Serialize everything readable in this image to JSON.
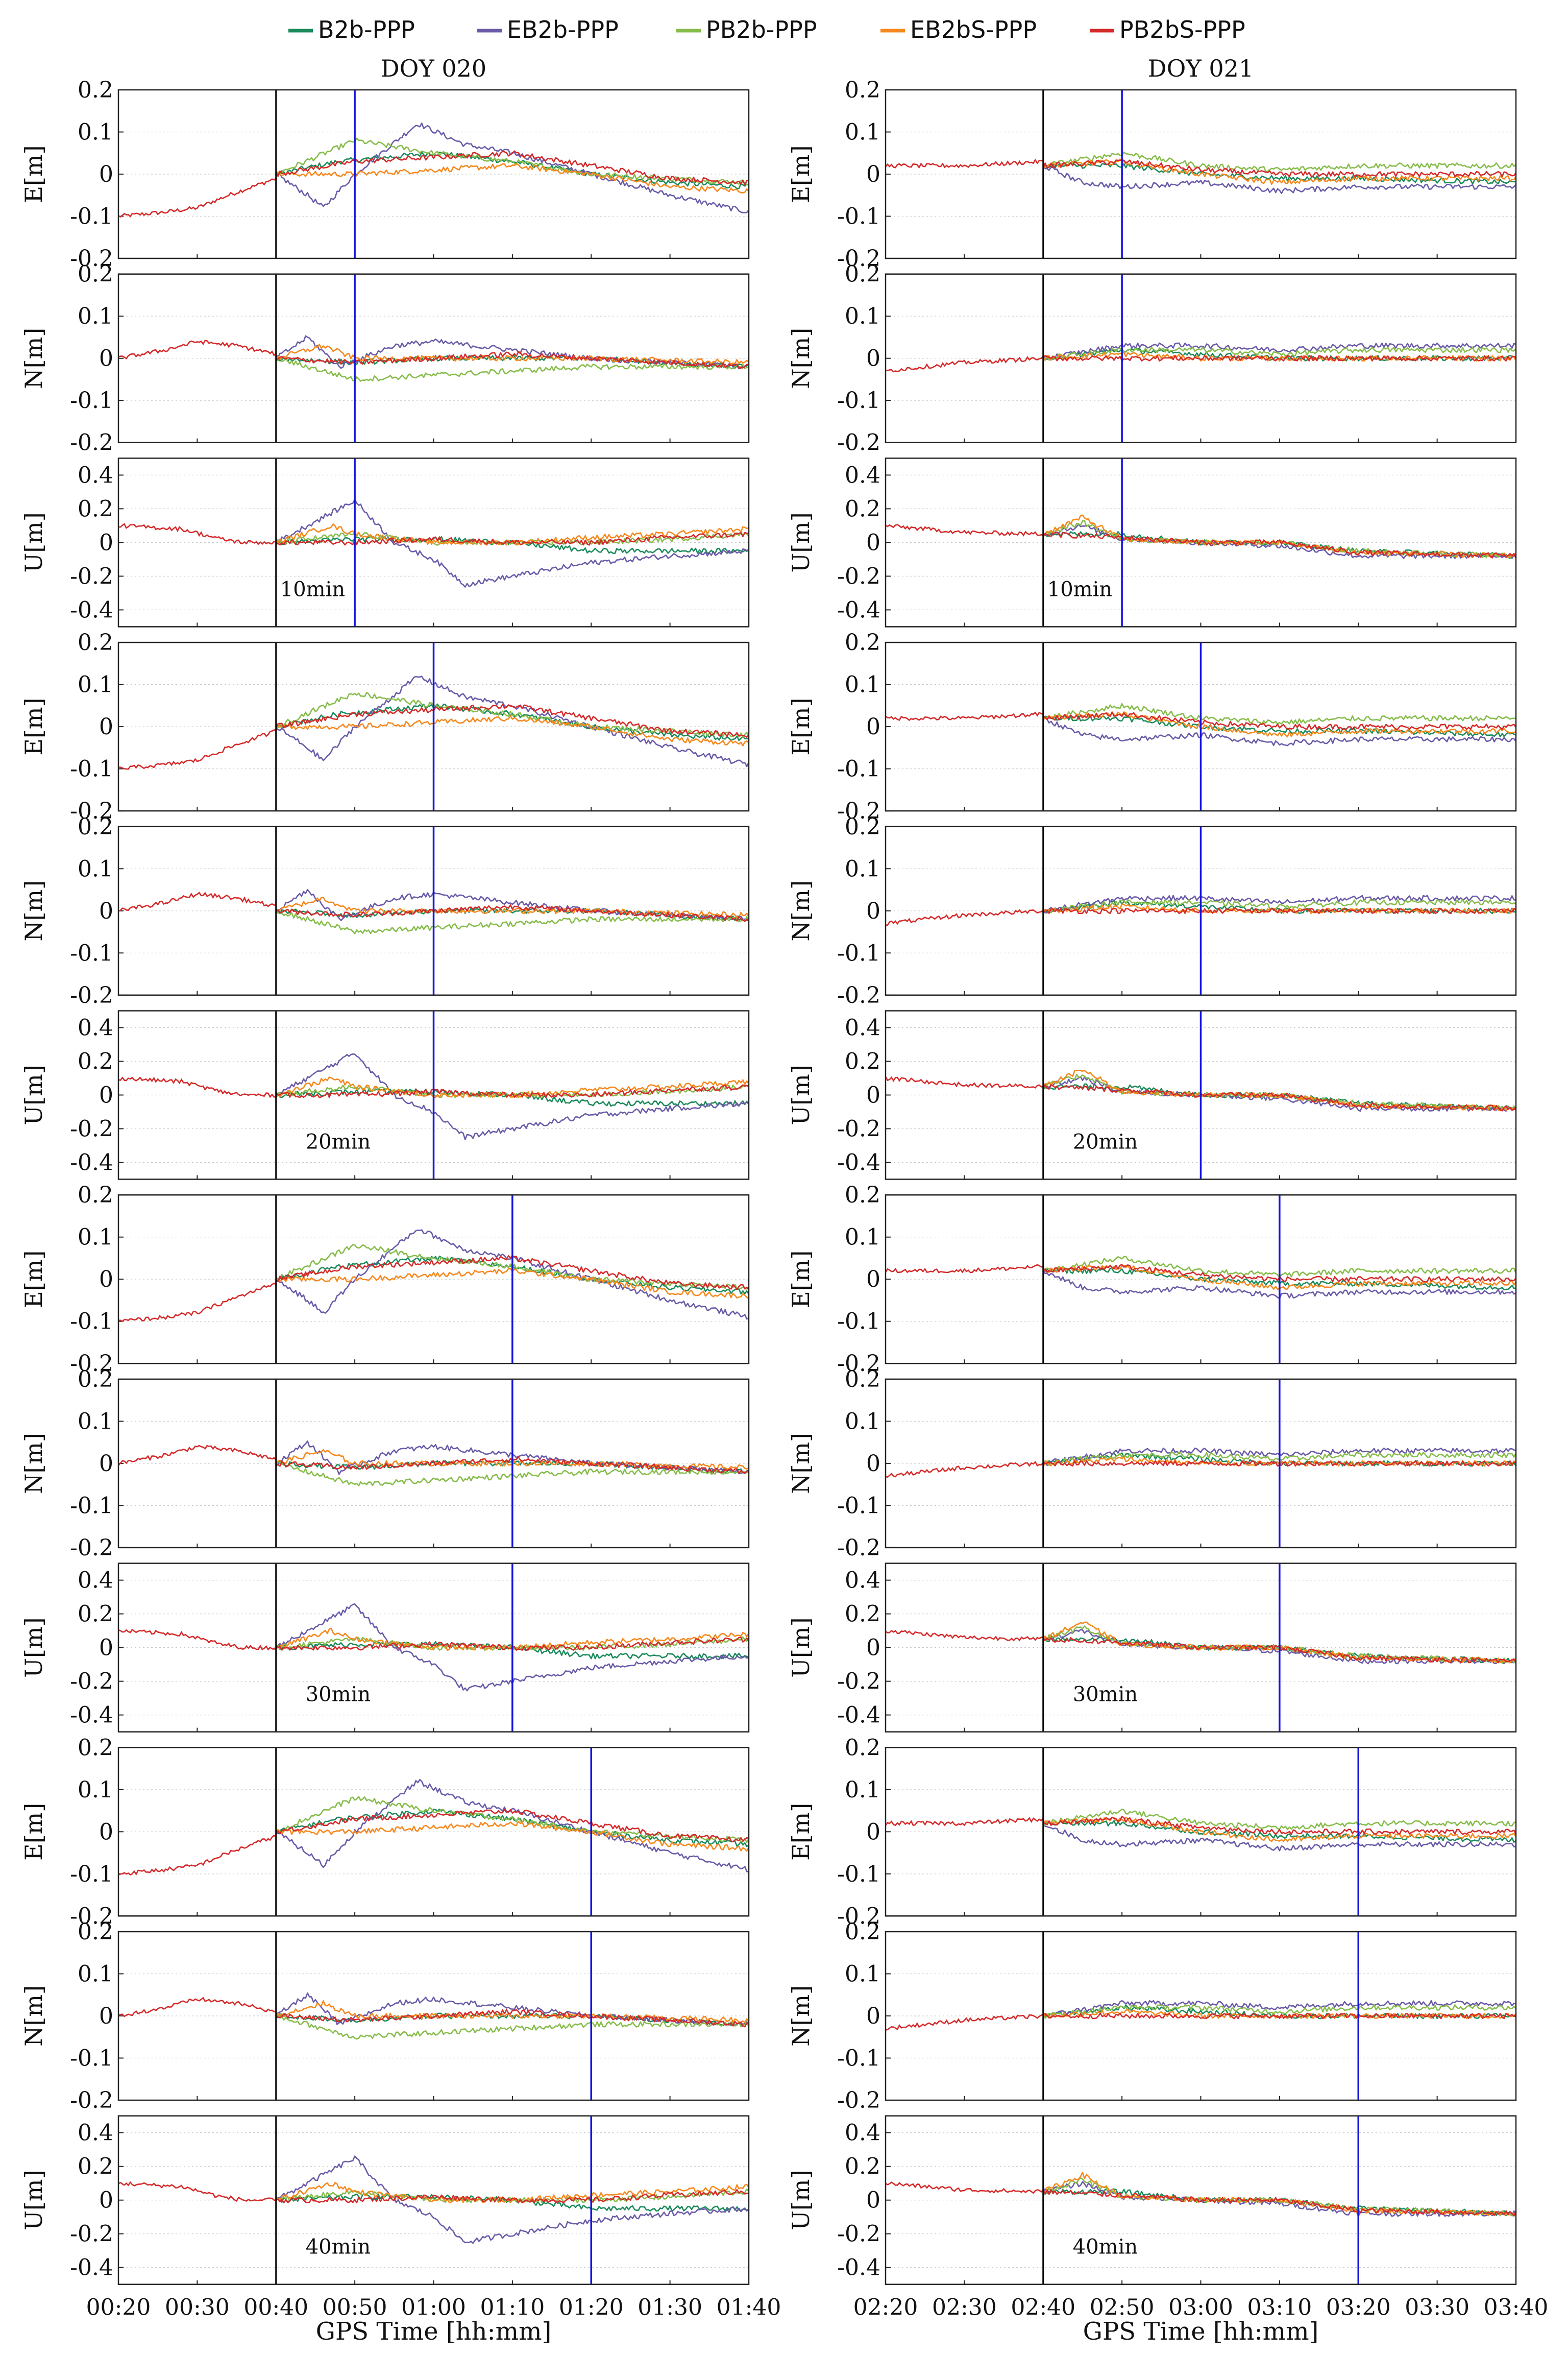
{
  "chart_data": {
    "type": "line",
    "legend": {
      "placement": "top-center",
      "entries": [
        {
          "name": "B2b-PPP",
          "color": "#1a8a5a"
        },
        {
          "name": "EB2b-PPP",
          "color": "#6a5aa8"
        },
        {
          "name": "PB2b-PPP",
          "color": "#86bc4a"
        },
        {
          "name": "EB2bS-PPP",
          "color": "#f5881e"
        },
        {
          "name": "PB2bS-PPP",
          "color": "#d42a2a"
        }
      ]
    },
    "xlabel": "GPS Time [hh:mm]",
    "columns": [
      {
        "title": "DOY 020",
        "start_min": 20,
        "end_min": 100,
        "xticks": [
          "00:20",
          "00:30",
          "00:40",
          "00:50",
          "01:00",
          "01:10",
          "01:20",
          "01:30",
          "01:40"
        ],
        "reset_marker": "00:40"
      },
      {
        "title": "DOY 021",
        "start_min": 140,
        "end_min": 220,
        "xticks": [
          "02:20",
          "02:30",
          "02:40",
          "02:50",
          "03:00",
          "03:10",
          "03:20",
          "03:30",
          "03:40"
        ],
        "reset_marker": "02:40"
      }
    ],
    "groups": [
      {
        "label": "10min",
        "convergence_marker_offset_min": 10
      },
      {
        "label": "20min",
        "convergence_marker_offset_min": 20
      },
      {
        "label": "30min",
        "convergence_marker_offset_min": 30
      },
      {
        "label": "40min",
        "convergence_marker_offset_min": 40
      }
    ],
    "components": [
      {
        "ylabel": "E[m]",
        "ylim": [
          -0.2,
          0.2
        ],
        "yticks": [
          "0.2",
          "0.1",
          "0",
          "-0.1",
          "-0.2"
        ]
      },
      {
        "ylabel": "N[m]",
        "ylim": [
          -0.2,
          0.2
        ],
        "yticks": [
          "0.2",
          "0.1",
          "0",
          "-0.1",
          "-0.2"
        ]
      },
      {
        "ylabel": "U[m]",
        "ylim": [
          -0.5,
          0.5
        ],
        "yticks": [
          "0.4",
          "0.2",
          "0",
          "-0.2",
          "-0.4"
        ]
      }
    ],
    "prefix_trend": {
      "DOY 020": {
        "E": [
          [
            20,
            -0.1
          ],
          [
            26,
            -0.09
          ],
          [
            30,
            -0.08
          ],
          [
            34,
            -0.05
          ],
          [
            40,
            -0.01
          ]
        ],
        "N": [
          [
            20,
            0
          ],
          [
            26,
            0.02
          ],
          [
            30,
            0.04
          ],
          [
            35,
            0.03
          ],
          [
            40,
            0.01
          ]
        ],
        "U": [
          [
            20,
            0.1
          ],
          [
            28,
            0.08
          ],
          [
            33,
            0.02
          ],
          [
            36,
            0.0
          ],
          [
            40,
            0.0
          ]
        ]
      },
      "DOY 021": {
        "E": [
          [
            140,
            0.02
          ],
          [
            150,
            0.02
          ],
          [
            160,
            0.03
          ]
        ],
        "N": [
          [
            140,
            -0.03
          ],
          [
            150,
            -0.01
          ],
          [
            160,
            0.0
          ]
        ],
        "U": [
          [
            140,
            0.1
          ],
          [
            150,
            0.06
          ],
          [
            160,
            0.05
          ]
        ]
      }
    },
    "series_profiles": {
      "DOY 020": {
        "E": {
          "B2b-PPP": [
            [
              40,
              0
            ],
            [
              48,
              0.03
            ],
            [
              60,
              0.05
            ],
            [
              70,
              0.03
            ],
            [
              80,
              0.0
            ],
            [
              90,
              -0.02
            ],
            [
              100,
              -0.03
            ]
          ],
          "EB2b-PPP": [
            [
              40,
              0
            ],
            [
              44,
              -0.05
            ],
            [
              46,
              -0.08
            ],
            [
              50,
              0.0
            ],
            [
              58,
              0.12
            ],
            [
              64,
              0.07
            ],
            [
              70,
              0.05
            ],
            [
              80,
              0.0
            ],
            [
              90,
              -0.05
            ],
            [
              100,
              -0.09
            ]
          ],
          "PB2b-PPP": [
            [
              40,
              0
            ],
            [
              50,
              0.08
            ],
            [
              60,
              0.05
            ],
            [
              70,
              0.03
            ],
            [
              80,
              0.0
            ],
            [
              90,
              -0.01
            ],
            [
              100,
              -0.02
            ]
          ],
          "EB2bS-PPP": [
            [
              40,
              0
            ],
            [
              50,
              0.0
            ],
            [
              60,
              0.01
            ],
            [
              70,
              0.02
            ],
            [
              80,
              0.0
            ],
            [
              90,
              -0.03
            ],
            [
              100,
              -0.04
            ]
          ],
          "PB2bS-PPP": [
            [
              40,
              0
            ],
            [
              50,
              0.03
            ],
            [
              60,
              0.04
            ],
            [
              70,
              0.05
            ],
            [
              80,
              0.02
            ],
            [
              90,
              -0.01
            ],
            [
              100,
              -0.02
            ]
          ]
        },
        "N": {
          "B2b-PPP": [
            [
              40,
              0
            ],
            [
              50,
              -0.01
            ],
            [
              60,
              0.0
            ],
            [
              70,
              0.0
            ],
            [
              80,
              0.0
            ],
            [
              90,
              -0.01
            ],
            [
              100,
              -0.02
            ]
          ],
          "EB2b-PPP": [
            [
              40,
              0
            ],
            [
              44,
              0.05
            ],
            [
              48,
              -0.02
            ],
            [
              55,
              0.03
            ],
            [
              60,
              0.04
            ],
            [
              70,
              0.02
            ],
            [
              80,
              0.0
            ],
            [
              90,
              -0.01
            ],
            [
              100,
              -0.02
            ]
          ],
          "PB2b-PPP": [
            [
              40,
              0
            ],
            [
              50,
              -0.05
            ],
            [
              60,
              -0.04
            ],
            [
              70,
              -0.03
            ],
            [
              80,
              -0.02
            ],
            [
              90,
              -0.02
            ],
            [
              100,
              -0.02
            ]
          ],
          "EB2bS-PPP": [
            [
              40,
              0
            ],
            [
              46,
              0.03
            ],
            [
              50,
              0.0
            ],
            [
              60,
              0.0
            ],
            [
              70,
              0.0
            ],
            [
              80,
              0.0
            ],
            [
              100,
              -0.01
            ]
          ],
          "PB2bS-PPP": [
            [
              40,
              0
            ],
            [
              50,
              -0.01
            ],
            [
              60,
              0.0
            ],
            [
              70,
              0.01
            ],
            [
              80,
              0.0
            ],
            [
              90,
              -0.01
            ],
            [
              100,
              -0.02
            ]
          ]
        },
        "U": {
          "B2b-PPP": [
            [
              40,
              0
            ],
            [
              50,
              0.02
            ],
            [
              60,
              0.02
            ],
            [
              70,
              0.0
            ],
            [
              80,
              -0.05
            ],
            [
              90,
              -0.05
            ],
            [
              100,
              -0.05
            ]
          ],
          "EB2b-PPP": [
            [
              40,
              0
            ],
            [
              44,
              0.1
            ],
            [
              50,
              0.25
            ],
            [
              55,
              0.0
            ],
            [
              60,
              -0.1
            ],
            [
              64,
              -0.25
            ],
            [
              70,
              -0.2
            ],
            [
              80,
              -0.12
            ],
            [
              90,
              -0.08
            ],
            [
              100,
              -0.05
            ]
          ],
          "PB2b-PPP": [
            [
              40,
              0
            ],
            [
              50,
              0.05
            ],
            [
              60,
              0.0
            ],
            [
              70,
              0.0
            ],
            [
              80,
              0.0
            ],
            [
              90,
              0.02
            ],
            [
              100,
              0.05
            ]
          ],
          "EB2bS-PPP": [
            [
              40,
              0
            ],
            [
              47,
              0.1
            ],
            [
              50,
              0.05
            ],
            [
              60,
              0.0
            ],
            [
              70,
              0.0
            ],
            [
              80,
              0.03
            ],
            [
              90,
              0.05
            ],
            [
              100,
              0.08
            ]
          ],
          "PB2bS-PPP": [
            [
              40,
              0
            ],
            [
              50,
              0.0
            ],
            [
              60,
              0.02
            ],
            [
              70,
              0.0
            ],
            [
              80,
              0.0
            ],
            [
              90,
              0.03
            ],
            [
              100,
              0.05
            ]
          ]
        }
      },
      "DOY 021": {
        "E": {
          "B2b-PPP": [
            [
              160,
              0.02
            ],
            [
              170,
              0.02
            ],
            [
              180,
              0.0
            ],
            [
              190,
              -0.01
            ],
            [
              200,
              -0.01
            ],
            [
              220,
              -0.02
            ]
          ],
          "EB2b-PPP": [
            [
              160,
              0.02
            ],
            [
              165,
              -0.02
            ],
            [
              170,
              -0.03
            ],
            [
              180,
              -0.02
            ],
            [
              190,
              -0.04
            ],
            [
              200,
              -0.03
            ],
            [
              220,
              -0.03
            ]
          ],
          "PB2b-PPP": [
            [
              160,
              0.02
            ],
            [
              170,
              0.05
            ],
            [
              180,
              0.02
            ],
            [
              190,
              0.01
            ],
            [
              200,
              0.02
            ],
            [
              220,
              0.02
            ]
          ],
          "EB2bS-PPP": [
            [
              160,
              0.02
            ],
            [
              170,
              0.03
            ],
            [
              180,
              0.0
            ],
            [
              190,
              -0.02
            ],
            [
              200,
              -0.01
            ],
            [
              220,
              -0.01
            ]
          ],
          "PB2bS-PPP": [
            [
              160,
              0.02
            ],
            [
              170,
              0.03
            ],
            [
              180,
              0.01
            ],
            [
              190,
              0.0
            ],
            [
              200,
              0.0
            ],
            [
              220,
              0.0
            ]
          ]
        },
        "N": {
          "B2b-PPP": [
            [
              160,
              0.0
            ],
            [
              170,
              0.02
            ],
            [
              180,
              0.01
            ],
            [
              190,
              0.0
            ],
            [
              200,
              0.0
            ],
            [
              220,
              0.0
            ]
          ],
          "EB2b-PPP": [
            [
              160,
              0.0
            ],
            [
              170,
              0.03
            ],
            [
              180,
              0.03
            ],
            [
              190,
              0.02
            ],
            [
              200,
              0.03
            ],
            [
              220,
              0.03
            ]
          ],
          "PB2b-PPP": [
            [
              160,
              0.0
            ],
            [
              170,
              0.02
            ],
            [
              180,
              0.02
            ],
            [
              190,
              0.01
            ],
            [
              200,
              0.02
            ],
            [
              220,
              0.02
            ]
          ],
          "EB2bS-PPP": [
            [
              160,
              0.0
            ],
            [
              170,
              0.01
            ],
            [
              180,
              0.0
            ],
            [
              190,
              0.0
            ],
            [
              200,
              0.0
            ],
            [
              220,
              0.0
            ]
          ],
          "PB2bS-PPP": [
            [
              160,
              0.0
            ],
            [
              170,
              0.0
            ],
            [
              180,
              0.0
            ],
            [
              190,
              0.0
            ],
            [
              200,
              0.0
            ],
            [
              220,
              0.0
            ]
          ]
        },
        "U": {
          "B2b-PPP": [
            [
              160,
              0.05
            ],
            [
              170,
              0.05
            ],
            [
              180,
              0.0
            ],
            [
              190,
              0.0
            ],
            [
              200,
              -0.05
            ],
            [
              220,
              -0.08
            ]
          ],
          "EB2b-PPP": [
            [
              160,
              0.05
            ],
            [
              165,
              0.1
            ],
            [
              170,
              0.02
            ],
            [
              180,
              0.0
            ],
            [
              190,
              -0.02
            ],
            [
              200,
              -0.08
            ],
            [
              220,
              -0.08
            ]
          ],
          "PB2b-PPP": [
            [
              160,
              0.05
            ],
            [
              165,
              0.12
            ],
            [
              170,
              0.02
            ],
            [
              180,
              0.0
            ],
            [
              190,
              0.0
            ],
            [
              200,
              -0.05
            ],
            [
              220,
              -0.08
            ]
          ],
          "EB2bS-PPP": [
            [
              160,
              0.05
            ],
            [
              165,
              0.15
            ],
            [
              170,
              0.02
            ],
            [
              180,
              0.0
            ],
            [
              190,
              0.0
            ],
            [
              200,
              -0.06
            ],
            [
              220,
              -0.08
            ]
          ],
          "PB2bS-PPP": [
            [
              160,
              0.05
            ],
            [
              170,
              0.03
            ],
            [
              180,
              0.0
            ],
            [
              190,
              0.0
            ],
            [
              200,
              -0.06
            ],
            [
              220,
              -0.08
            ]
          ]
        }
      }
    }
  }
}
